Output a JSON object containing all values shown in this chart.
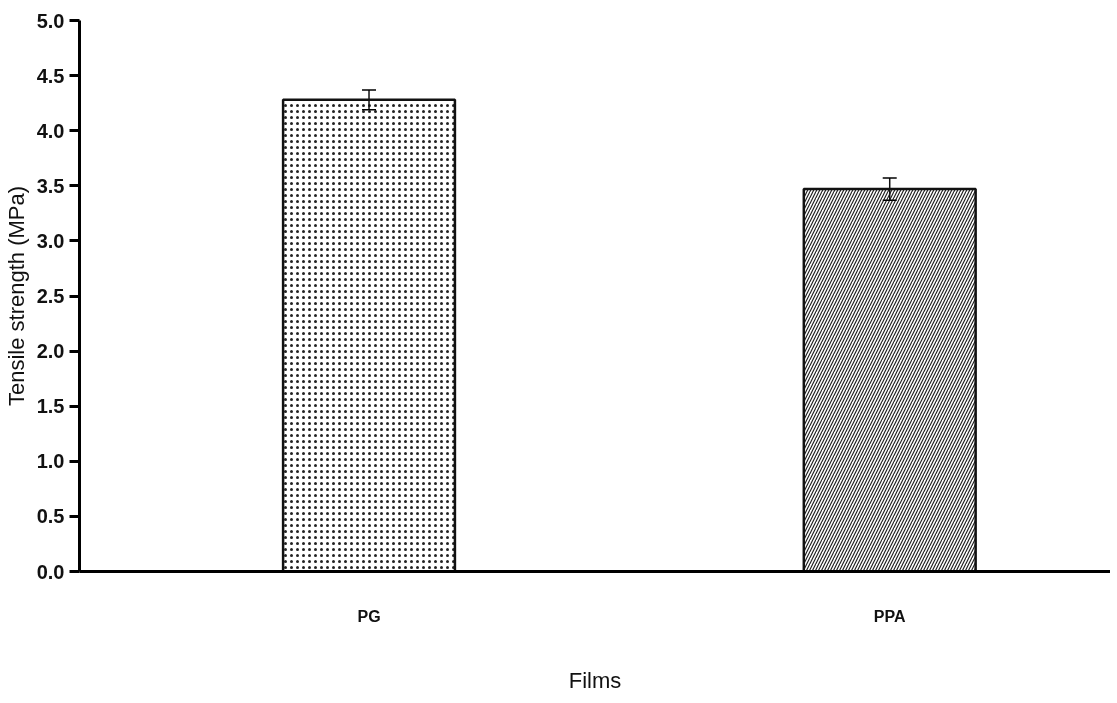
{
  "chart_data": {
    "type": "bar",
    "xlabel": "Films",
    "ylabel": "Tensile strength (MPa)",
    "categories": [
      "PG",
      "PPA"
    ],
    "values": [
      4.28,
      3.47
    ],
    "errors": [
      0.09,
      0.1
    ],
    "colors": [
      "#ffffff",
      "#ffffff"
    ],
    "ylim": [
      0,
      5
    ],
    "yticks": [
      {
        "value": 0,
        "label": "0.0"
      },
      {
        "value": 0.5,
        "label": "0.5"
      },
      {
        "value": 1,
        "label": "1.0"
      },
      {
        "value": 1.5,
        "label": "1.5"
      },
      {
        "value": 2,
        "label": "2.0"
      },
      {
        "value": 2.5,
        "label": "2.5"
      },
      {
        "value": 3,
        "label": "3.0"
      },
      {
        "value": 3.5,
        "label": "3.5"
      },
      {
        "value": 4,
        "label": "4.0"
      },
      {
        "value": 4.5,
        "label": "4.5"
      },
      {
        "value": 5,
        "label": "5.0"
      }
    ],
    "grid": false
  }
}
